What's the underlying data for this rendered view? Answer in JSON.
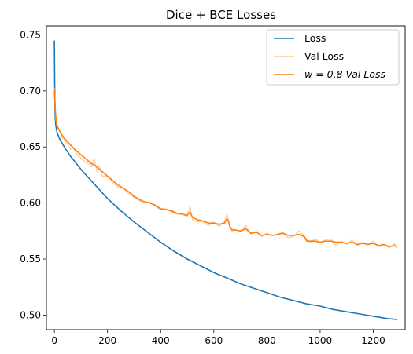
{
  "chart_data": {
    "type": "line",
    "title": "Dice + BCE Losses",
    "xlabel": "",
    "ylabel": "",
    "xlim": [
      -30,
      1320
    ],
    "ylim": [
      0.487,
      0.758
    ],
    "xticks": [
      0,
      200,
      400,
      600,
      800,
      1000,
      1200
    ],
    "yticks": [
      0.5,
      0.55,
      0.6,
      0.65,
      0.7,
      0.75
    ],
    "xtick_labels": [
      "0",
      "200",
      "400",
      "600",
      "800",
      "1000",
      "1200"
    ],
    "ytick_labels": [
      "0.50",
      "0.55",
      "0.60",
      "0.65",
      "0.70",
      "0.75"
    ],
    "grid": false,
    "legend_position": "top-right",
    "legend": [
      "Loss",
      "Val Loss",
      "w = 0.8 Val Loss"
    ],
    "series": [
      {
        "name": "Loss",
        "color": "#1f77b4",
        "x": [
          0,
          1,
          2,
          3,
          5,
          10,
          20,
          40,
          60,
          80,
          100,
          150,
          200,
          250,
          300,
          350,
          400,
          450,
          500,
          550,
          600,
          650,
          700,
          750,
          800,
          850,
          900,
          950,
          1000,
          1050,
          1100,
          1150,
          1200,
          1250,
          1290
        ],
        "y": [
          0.745,
          0.71,
          0.69,
          0.678,
          0.67,
          0.663,
          0.657,
          0.649,
          0.642,
          0.636,
          0.63,
          0.617,
          0.604,
          0.593,
          0.583,
          0.574,
          0.565,
          0.557,
          0.55,
          0.544,
          0.538,
          0.533,
          0.528,
          0.524,
          0.52,
          0.516,
          0.513,
          0.51,
          0.508,
          0.505,
          0.503,
          0.501,
          0.499,
          0.497,
          0.496
        ]
      },
      {
        "name": "Val Loss",
        "color": "#ffbb78",
        "opacity": 0.75,
        "x": [
          0,
          5,
          10,
          20,
          30,
          40,
          50,
          60,
          70,
          80,
          90,
          100,
          110,
          120,
          130,
          140,
          150,
          160,
          170,
          180,
          200,
          220,
          240,
          260,
          280,
          300,
          320,
          340,
          360,
          380,
          400,
          420,
          440,
          460,
          480,
          500,
          510,
          520,
          540,
          560,
          580,
          600,
          620,
          640,
          650,
          660,
          670,
          680,
          700,
          720,
          740,
          760,
          780,
          800,
          820,
          840,
          860,
          880,
          900,
          920,
          940,
          960,
          980,
          1000,
          1020,
          1040,
          1060,
          1080,
          1100,
          1120,
          1140,
          1160,
          1180,
          1200,
          1220,
          1240,
          1260,
          1280,
          1290
        ],
        "y": [
          0.703,
          0.675,
          0.668,
          0.664,
          0.658,
          0.656,
          0.652,
          0.648,
          0.65,
          0.645,
          0.642,
          0.64,
          0.638,
          0.636,
          0.635,
          0.632,
          0.64,
          0.628,
          0.632,
          0.624,
          0.624,
          0.618,
          0.614,
          0.613,
          0.608,
          0.605,
          0.602,
          0.6,
          0.601,
          0.597,
          0.594,
          0.595,
          0.592,
          0.59,
          0.59,
          0.588,
          0.597,
          0.585,
          0.583,
          0.583,
          0.58,
          0.583,
          0.579,
          0.584,
          0.59,
          0.578,
          0.574,
          0.576,
          0.575,
          0.58,
          0.572,
          0.575,
          0.57,
          0.573,
          0.571,
          0.572,
          0.574,
          0.569,
          0.57,
          0.575,
          0.571,
          0.564,
          0.568,
          0.565,
          0.567,
          0.568,
          0.562,
          0.566,
          0.563,
          0.567,
          0.562,
          0.565,
          0.563,
          0.566,
          0.561,
          0.563,
          0.56,
          0.564,
          0.56
        ]
      },
      {
        "name": "w = 0.8 Val Loss",
        "color": "#ff7f0e",
        "x": [
          0,
          5,
          10,
          20,
          30,
          40,
          60,
          80,
          100,
          120,
          140,
          150,
          160,
          180,
          200,
          220,
          240,
          260,
          280,
          300,
          320,
          340,
          360,
          380,
          400,
          420,
          440,
          460,
          480,
          500,
          510,
          520,
          540,
          560,
          580,
          600,
          620,
          640,
          650,
          655,
          660,
          670,
          680,
          700,
          720,
          740,
          760,
          780,
          800,
          820,
          840,
          860,
          880,
          900,
          920,
          940,
          950,
          960,
          980,
          1000,
          1020,
          1040,
          1060,
          1080,
          1100,
          1120,
          1140,
          1160,
          1180,
          1200,
          1220,
          1240,
          1260,
          1280,
          1290
        ],
        "y": [
          0.7,
          0.678,
          0.669,
          0.664,
          0.66,
          0.657,
          0.652,
          0.647,
          0.643,
          0.639,
          0.635,
          0.634,
          0.632,
          0.628,
          0.624,
          0.62,
          0.616,
          0.613,
          0.61,
          0.606,
          0.603,
          0.601,
          0.6,
          0.598,
          0.595,
          0.594,
          0.593,
          0.591,
          0.59,
          0.589,
          0.592,
          0.587,
          0.585,
          0.584,
          0.582,
          0.582,
          0.581,
          0.582,
          0.586,
          0.584,
          0.579,
          0.576,
          0.576,
          0.575,
          0.577,
          0.573,
          0.574,
          0.571,
          0.572,
          0.571,
          0.572,
          0.573,
          0.571,
          0.571,
          0.572,
          0.57,
          0.566,
          0.566,
          0.566,
          0.565,
          0.566,
          0.566,
          0.565,
          0.565,
          0.564,
          0.565,
          0.563,
          0.564,
          0.563,
          0.564,
          0.562,
          0.563,
          0.561,
          0.562,
          0.561
        ]
      }
    ]
  }
}
